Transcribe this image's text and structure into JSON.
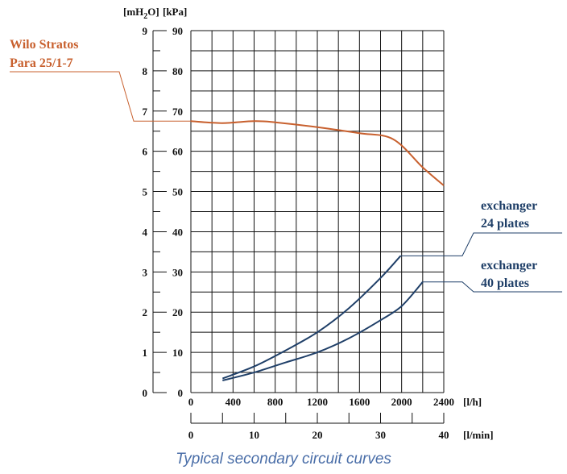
{
  "chart_data": {
    "type": "line",
    "caption": "Typical secondary circuit curves",
    "x_unit": "[l/h]",
    "x_secondary_unit": "[l/min]",
    "y_unit_left": "[mH2O]",
    "y_unit_right": "[kPa]",
    "xlim": [
      0,
      2400
    ],
    "ylim": [
      0,
      90
    ],
    "x_ticks": [
      "0",
      "400",
      "800",
      "1200",
      "1600",
      "2000",
      "2400"
    ],
    "x_secondary_ticks": [
      "0",
      "10",
      "20",
      "30",
      "40"
    ],
    "y_ticks_kpa": [
      "0",
      "10",
      "20",
      "30",
      "40",
      "50",
      "60",
      "70",
      "80",
      "90"
    ],
    "y_ticks_mh2o": [
      "0",
      "1",
      "2",
      "3",
      "4",
      "5",
      "6",
      "7",
      "8",
      "9"
    ],
    "grid": true,
    "colors": {
      "pump": "#c8602e",
      "exchanger": "#1f3f68",
      "grid": "#111111"
    },
    "series": [
      {
        "name": "Wilo Stratos Para 25/1-7",
        "name_lines": [
          "Wilo Stratos",
          "Para 25/1-7"
        ],
        "color": "#c8602e",
        "x": [
          0,
          300,
          600,
          800,
          1200,
          1600,
          1920,
          2200,
          2400
        ],
        "y": [
          67.5,
          67.0,
          67.5,
          67.2,
          66.0,
          64.5,
          63.0,
          56.0,
          51.5
        ]
      },
      {
        "name": "exchanger 24 plates",
        "name_lines": [
          "exchanger",
          "24 plates"
        ],
        "color": "#1f3f68",
        "x": [
          300,
          600,
          900,
          1200,
          1500,
          1800,
          1990
        ],
        "y": [
          3.5,
          6.5,
          10.5,
          15.0,
          21.0,
          28.5,
          34.0
        ]
      },
      {
        "name": "exchanger 40 plates",
        "name_lines": [
          "exchanger",
          "40 plates"
        ],
        "color": "#1f3f68",
        "x": [
          300,
          600,
          900,
          1200,
          1500,
          1800,
          2000,
          2200
        ],
        "y": [
          3.0,
          5.0,
          7.5,
          10.0,
          13.5,
          18.0,
          21.5,
          27.5
        ]
      }
    ]
  }
}
